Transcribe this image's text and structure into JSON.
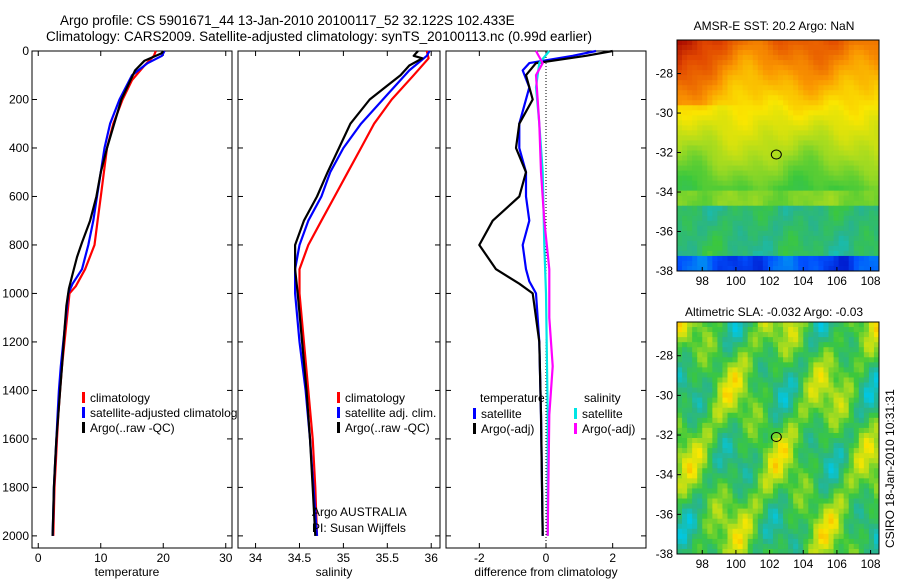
{
  "header": {
    "line1": "Argo profile: CS 5901671_44 13-Jan-2010 20100117_52 32.122S 102.433E",
    "line2": "Climatology: CARS2009. Satellite-adjusted climatology: synTS_20100113.nc (0.99d earlier)"
  },
  "credit": "CSIRO 18-Jan-2010 10:31:31",
  "colors": {
    "red": "#ff0000",
    "blue": "#0000ff",
    "black": "#000000",
    "cyan": "#00e5e5",
    "magenta": "#ff00ff"
  },
  "chart_data": [
    {
      "id": "temperature",
      "type": "line",
      "xlabel": "temperature",
      "xlim": [
        -1,
        31
      ],
      "ylim": [
        2050,
        0
      ],
      "xticks": [
        0,
        10,
        20,
        30
      ],
      "yticks": [
        0,
        200,
        400,
        600,
        800,
        1000,
        1200,
        1400,
        1600,
        1800,
        2000
      ],
      "legend": [
        {
          "label": "climatology",
          "color": "#ff0000"
        },
        {
          "label": "satellite-adjusted climatology",
          "color": "#0000ff"
        },
        {
          "label": "Argo(..raw -QC)",
          "color": "#000000"
        }
      ],
      "series": [
        {
          "key": "clim",
          "color": "#ff0000",
          "points": [
            [
              18.8,
              0
            ],
            [
              18.5,
              20
            ],
            [
              17,
              60
            ],
            [
              15,
              120
            ],
            [
              13.5,
              200
            ],
            [
              12,
              300
            ],
            [
              11,
              400
            ],
            [
              10.5,
              500
            ],
            [
              10,
              600
            ],
            [
              9.5,
              700
            ],
            [
              9,
              800
            ],
            [
              7.5,
              900
            ],
            [
              6,
              970
            ],
            [
              5,
              1000
            ],
            [
              4.6,
              1100
            ],
            [
              4.2,
              1200
            ],
            [
              3.8,
              1300
            ],
            [
              3.5,
              1400
            ],
            [
              3.2,
              1500
            ],
            [
              3,
              1600
            ],
            [
              2.8,
              1700
            ],
            [
              2.6,
              1800
            ],
            [
              2.5,
              1900
            ],
            [
              2.4,
              2000
            ]
          ]
        },
        {
          "key": "sat",
          "color": "#0000ff",
          "points": [
            [
              20.2,
              0
            ],
            [
              19.8,
              20
            ],
            [
              17.5,
              50
            ],
            [
              15,
              100
            ],
            [
              13,
              200
            ],
            [
              11.5,
              300
            ],
            [
              10.6,
              400
            ],
            [
              10,
              500
            ],
            [
              9.4,
              600
            ],
            [
              8.8,
              700
            ],
            [
              8,
              800
            ],
            [
              7,
              900
            ],
            [
              5.5,
              960
            ],
            [
              4.8,
              1000
            ],
            [
              4.4,
              1100
            ],
            [
              4,
              1200
            ],
            [
              3.6,
              1300
            ],
            [
              3.3,
              1400
            ],
            [
              3.1,
              1500
            ],
            [
              2.9,
              1600
            ],
            [
              2.7,
              1700
            ],
            [
              2.5,
              1800
            ],
            [
              2.4,
              1900
            ],
            [
              2.3,
              2000
            ]
          ]
        },
        {
          "key": "argo",
          "color": "#000000",
          "points": [
            [
              20,
              0
            ],
            [
              19.7,
              10
            ],
            [
              17,
              40
            ],
            [
              15.5,
              80
            ],
            [
              13.3,
              200
            ],
            [
              11,
              400
            ],
            [
              10,
              500
            ],
            [
              9.3,
              600
            ],
            [
              8.3,
              700
            ],
            [
              7,
              790
            ],
            [
              6.2,
              850
            ],
            [
              5.5,
              920
            ],
            [
              4.9,
              980
            ],
            [
              4.5,
              1050
            ],
            [
              4.2,
              1150
            ],
            [
              3.8,
              1300
            ],
            [
              3.5,
              1400
            ],
            [
              3.2,
              1500
            ],
            [
              2.9,
              1600
            ],
            [
              2.7,
              1700
            ],
            [
              2.5,
              1800
            ],
            [
              2.4,
              1900
            ],
            [
              2.3,
              2000
            ]
          ]
        }
      ]
    },
    {
      "id": "salinity",
      "type": "line",
      "xlabel": "salinity",
      "xlim": [
        33.8,
        36.1
      ],
      "ylim": [
        2050,
        0
      ],
      "xticks": [
        34,
        34.5,
        35,
        35.5,
        36
      ],
      "legend": [
        {
          "label": "climatology",
          "color": "#ff0000"
        },
        {
          "label": "satellite adj. clim.",
          "color": "#0000ff"
        },
        {
          "label": "Argo(..raw -QC)",
          "color": "#000000"
        }
      ],
      "annotation": [
        "Argo AUSTRALIA",
        "PI: Susan Wijffels"
      ],
      "series": [
        {
          "key": "clim",
          "color": "#ff0000",
          "points": [
            [
              35.95,
              0
            ],
            [
              35.97,
              30
            ],
            [
              35.8,
              100
            ],
            [
              35.55,
              200
            ],
            [
              35.35,
              300
            ],
            [
              35.2,
              400
            ],
            [
              35.05,
              500
            ],
            [
              34.9,
              600
            ],
            [
              34.75,
              700
            ],
            [
              34.6,
              800
            ],
            [
              34.5,
              900
            ],
            [
              34.5,
              1000
            ],
            [
              34.55,
              1200
            ],
            [
              34.6,
              1400
            ],
            [
              34.65,
              1600
            ],
            [
              34.68,
              1800
            ],
            [
              34.7,
              2000
            ]
          ]
        },
        {
          "key": "sat",
          "color": "#0000ff",
          "points": [
            [
              35.98,
              0
            ],
            [
              35.95,
              20
            ],
            [
              35.75,
              80
            ],
            [
              35.45,
              200
            ],
            [
              35.2,
              300
            ],
            [
              35,
              400
            ],
            [
              34.85,
              500
            ],
            [
              34.75,
              600
            ],
            [
              34.6,
              700
            ],
            [
              34.5,
              800
            ],
            [
              34.45,
              900
            ],
            [
              34.45,
              1000
            ],
            [
              34.5,
              1200
            ],
            [
              34.57,
              1400
            ],
            [
              34.62,
              1600
            ],
            [
              34.66,
              1800
            ],
            [
              34.7,
              2000
            ]
          ]
        },
        {
          "key": "argo",
          "color": "#000000",
          "points": [
            [
              35.85,
              0
            ],
            [
              35.8,
              20
            ],
            [
              35.9,
              30
            ],
            [
              35.75,
              60
            ],
            [
              35.65,
              100
            ],
            [
              35.3,
              200
            ],
            [
              35.08,
              300
            ],
            [
              34.95,
              400
            ],
            [
              34.82,
              500
            ],
            [
              34.7,
              600
            ],
            [
              34.55,
              700
            ],
            [
              34.45,
              800
            ],
            [
              34.45,
              900
            ],
            [
              34.48,
              1000
            ],
            [
              34.53,
              1200
            ],
            [
              34.58,
              1400
            ],
            [
              34.62,
              1600
            ],
            [
              34.65,
              1800
            ],
            [
              34.68,
              2000
            ]
          ]
        }
      ]
    },
    {
      "id": "difference",
      "type": "line",
      "xlabel": "difference from climatology",
      "xlim": [
        -3,
        3
      ],
      "ylim": [
        2050,
        0
      ],
      "xticks": [
        -2,
        0,
        2
      ],
      "legend_temperature_title": "temperature",
      "legend_salinity_title": "salinity",
      "legend": [
        {
          "label": "satellite",
          "color": "#0000ff",
          "group": "temperature"
        },
        {
          "label": "Argo(-adj)",
          "color": "#000000",
          "group": "temperature"
        },
        {
          "label": "satellite",
          "color": "#00e5e5",
          "group": "salinity"
        },
        {
          "label": "Argo(-adj)",
          "color": "#ff00ff",
          "group": "salinity"
        }
      ],
      "series": [
        {
          "key": "t_sat",
          "color": "#0000ff",
          "points": [
            [
              1.5,
              0
            ],
            [
              0.8,
              20
            ],
            [
              -0.5,
              50
            ],
            [
              -0.7,
              80
            ],
            [
              -0.5,
              150
            ],
            [
              -0.8,
              300
            ],
            [
              -0.8,
              400
            ],
            [
              -0.6,
              500
            ],
            [
              -0.6,
              600
            ],
            [
              -0.5,
              700
            ],
            [
              -0.7,
              800
            ],
            [
              -0.6,
              900
            ],
            [
              -0.5,
              950
            ],
            [
              -0.3,
              1000
            ],
            [
              -0.2,
              1200
            ],
            [
              -0.15,
              1500
            ],
            [
              -0.1,
              2000
            ]
          ]
        },
        {
          "key": "t_argo",
          "color": "#000000",
          "points": [
            [
              2,
              0
            ],
            [
              1.2,
              20
            ],
            [
              -0.3,
              50
            ],
            [
              -0.6,
              100
            ],
            [
              -0.4,
              200
            ],
            [
              -0.8,
              300
            ],
            [
              -0.9,
              400
            ],
            [
              -0.6,
              500
            ],
            [
              -0.8,
              600
            ],
            [
              -1.6,
              700
            ],
            [
              -2,
              800
            ],
            [
              -1.5,
              900
            ],
            [
              -0.8,
              960
            ],
            [
              -0.4,
              1000
            ],
            [
              -0.2,
              1200
            ],
            [
              -0.15,
              1500
            ],
            [
              -0.1,
              2000
            ]
          ]
        },
        {
          "key": "s_sat",
          "color": "#00e5e5",
          "points": [
            [
              0.1,
              0
            ],
            [
              -0.2,
              50
            ],
            [
              -0.3,
              150
            ],
            [
              -0.2,
              300
            ],
            [
              -0.1,
              500
            ],
            [
              -0.05,
              800
            ],
            [
              0,
              1000
            ],
            [
              0.05,
              1500
            ],
            [
              0.05,
              2000
            ]
          ]
        },
        {
          "key": "s_argo",
          "color": "#ff00ff",
          "points": [
            [
              -0.3,
              0
            ],
            [
              -0.1,
              50
            ],
            [
              -0.3,
              100
            ],
            [
              -0.2,
              300
            ],
            [
              -0.15,
              500
            ],
            [
              -0.05,
              700
            ],
            [
              0.1,
              900
            ],
            [
              0.1,
              1100
            ],
            [
              0.2,
              1300
            ],
            [
              0.1,
              1500
            ],
            [
              0.05,
              2000
            ]
          ]
        }
      ]
    },
    {
      "id": "sst_map",
      "type": "heatmap",
      "title": "AMSR-E SST: 20.2  Argo: NaN",
      "xticks": [
        98,
        100,
        102,
        104,
        106,
        108
      ],
      "yticks": [
        -28,
        -30,
        -32,
        -34,
        -36,
        -38
      ],
      "xlim": [
        96.5,
        108.5
      ],
      "ylim": [
        -38,
        -26.3
      ],
      "marker": [
        102.4,
        -32.1
      ]
    },
    {
      "id": "sla_map",
      "type": "heatmap",
      "title": "Altimetric SLA: -0.032  Argo: -0.03",
      "xticks": [
        98,
        100,
        102,
        104,
        106,
        108
      ],
      "yticks": [
        -28,
        -30,
        -32,
        -34,
        -36,
        -38
      ],
      "xlim": [
        96.5,
        108.5
      ],
      "ylim": [
        -38,
        -26.3
      ],
      "marker": [
        102.4,
        -32.1
      ]
    }
  ]
}
